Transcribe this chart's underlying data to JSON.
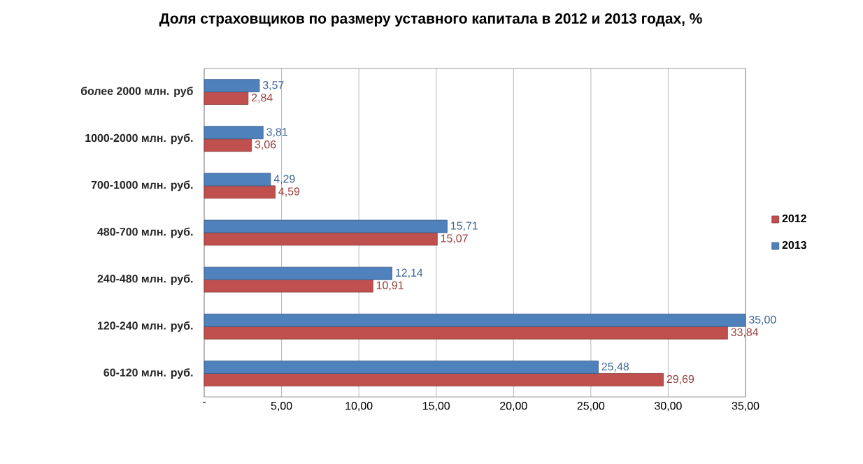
{
  "chart_data": {
    "type": "bar",
    "orientation": "horizontal",
    "title": "Доля страховщиков по размеру уставного капитала в 2012 и 2013 годах, %",
    "categories": [
      "более 2000 млн. руб",
      "1000-2000 млн. руб.",
      "700-1000 млн. руб.",
      "480-700 млн. руб.",
      "240-480 млн. руб.",
      "120-240 млн. руб.",
      "60-120 млн. руб."
    ],
    "series": [
      {
        "name": "2012",
        "color": "#c0504d",
        "values": [
          2.84,
          3.06,
          4.59,
          15.07,
          10.91,
          33.84,
          29.69
        ],
        "value_labels": [
          "2,84",
          "3,06",
          "4,59",
          "15,07",
          "10,91",
          "33,84",
          "29,69"
        ]
      },
      {
        "name": "2013",
        "color": "#4f81bd",
        "values": [
          3.57,
          3.81,
          4.29,
          15.71,
          12.14,
          35.0,
          25.48
        ],
        "value_labels": [
          "3,57",
          "3,81",
          "4,29",
          "15,71",
          "12,14",
          "35,00",
          "25,48"
        ]
      }
    ],
    "xlim": [
      0,
      35
    ],
    "xticks": [
      {
        "value": 0,
        "label": "-"
      },
      {
        "value": 5,
        "label": "5,00"
      },
      {
        "value": 10,
        "label": "10,00"
      },
      {
        "value": 15,
        "label": "15,00"
      },
      {
        "value": 20,
        "label": "20,00"
      },
      {
        "value": 25,
        "label": "25,00"
      },
      {
        "value": 30,
        "label": "30,00"
      },
      {
        "value": 35,
        "label": "35,00"
      }
    ],
    "grid": "x",
    "legend": "right"
  }
}
